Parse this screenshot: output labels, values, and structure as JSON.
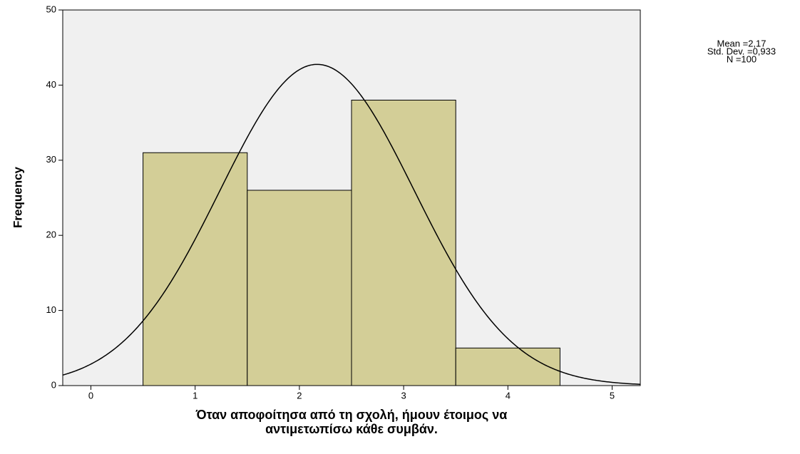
{
  "chart_data": {
    "type": "histogram",
    "bins": [
      0.5,
      1.5,
      2.5,
      3.5,
      4.5
    ],
    "values": [
      31,
      26,
      38,
      5
    ],
    "color": "#d3ce97",
    "xlim": [
      -0.27,
      5.27
    ],
    "xticks": [
      0,
      1,
      2,
      3,
      4,
      5
    ],
    "ylim": [
      0,
      50
    ],
    "yticks": [
      0,
      10,
      20,
      30,
      40,
      50
    ],
    "y_label": "Frequency",
    "x_label": [
      "Όταν αποφοίτησα από τη σχολή, ήμουν έτοιμος να",
      "αντιμετωπίσω κάθε συμβάν."
    ],
    "stats": {
      "mean": 2.17,
      "std_dev": 0.933,
      "n": 100,
      "labels": [
        "Mean =2,17",
        "Std. Dev. =0,933",
        "N =100"
      ]
    },
    "plot_background": "#f0f0f0"
  }
}
